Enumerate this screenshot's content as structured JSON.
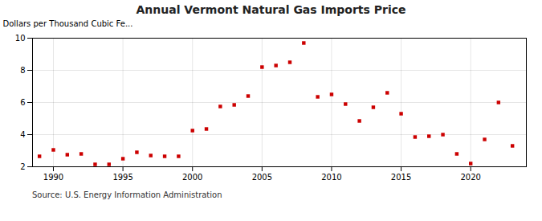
{
  "chart_data": {
    "type": "scatter",
    "title": "Annual Vermont Natural Gas Imports Price",
    "ylabel": "Dollars per Thousand Cubic Fe...",
    "annotation": "Source: U.S. Energy Information Administration",
    "x": [
      1989,
      1990,
      1991,
      1992,
      1993,
      1994,
      1995,
      1996,
      1997,
      1998,
      1999,
      2000,
      2001,
      2002,
      2003,
      2004,
      2005,
      2006,
      2007,
      2008,
      2009,
      2010,
      2011,
      2012,
      2013,
      2014,
      2015,
      2016,
      2017,
      2018,
      2019,
      2020,
      2021,
      2022,
      2023
    ],
    "values": [
      2.65,
      3.05,
      2.75,
      2.8,
      2.15,
      2.15,
      2.5,
      2.9,
      2.7,
      2.65,
      2.65,
      4.25,
      4.35,
      5.75,
      5.85,
      6.4,
      8.2,
      8.3,
      8.5,
      9.7,
      6.35,
      6.5,
      5.9,
      4.85,
      5.7,
      6.6,
      5.3,
      3.85,
      3.9,
      4.0,
      2.8,
      2.2,
      3.7,
      6.0,
      3.3
    ],
    "color": "#cc0000",
    "marker": "square",
    "xlim": [
      1988.5,
      2024
    ],
    "xticks": [
      1990,
      1995,
      2000,
      2005,
      2010,
      2015,
      2020
    ],
    "ylim": [
      2,
      10
    ],
    "yticks": [
      2,
      4,
      6,
      8,
      10
    ],
    "grid": true
  }
}
